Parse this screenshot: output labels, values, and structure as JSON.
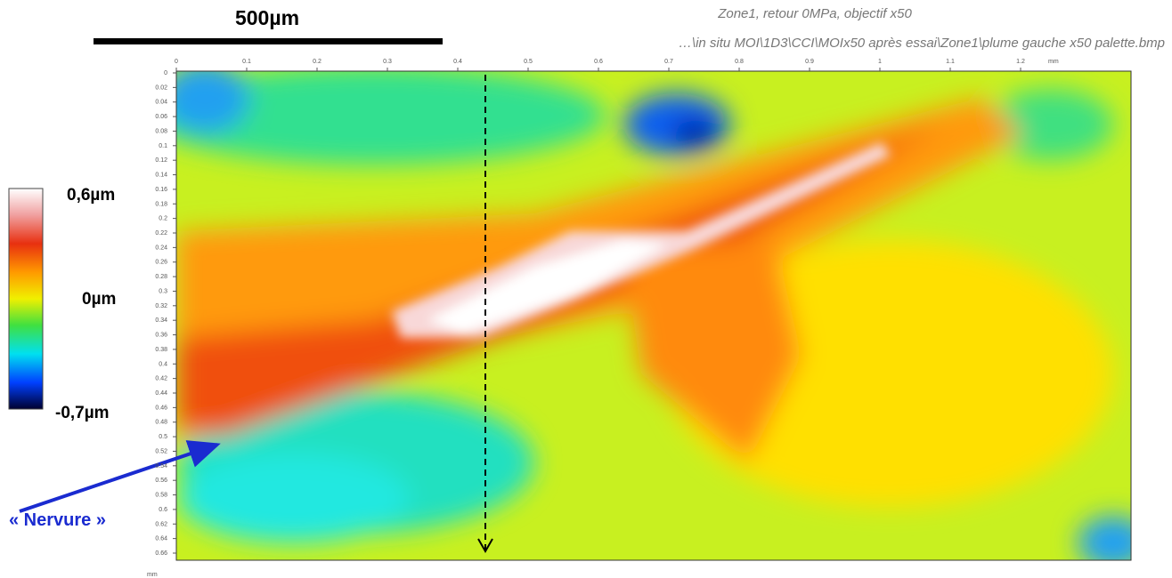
{
  "scale_bar": {
    "label": "500µm"
  },
  "caption": {
    "line1": "Zone1, retour 0MPa, objectif x50",
    "line2": "…\\in situ MOI\\1D3\\CCI\\MOIx50 après essai\\Zone1\\plume gauche x50 palette.bmp"
  },
  "x_axis": {
    "ticks": [
      "0",
      "0.1",
      "0.2",
      "0.3",
      "0.4",
      "0.5",
      "0.6",
      "0.7",
      "0.8",
      "0.9",
      "1",
      "1.1",
      "1.2"
    ],
    "unit": "mm"
  },
  "y_axis": {
    "ticks": [
      "0",
      "0.02",
      "0.04",
      "0.06",
      "0.08",
      "0.1",
      "0.12",
      "0.14",
      "0.16",
      "0.18",
      "0.2",
      "0.22",
      "0.24",
      "0.26",
      "0.28",
      "0.3",
      "0.32",
      "0.34",
      "0.36",
      "0.38",
      "0.4",
      "0.42",
      "0.44",
      "0.46",
      "0.48",
      "0.5",
      "0.52",
      "0.54",
      "0.56",
      "0.58",
      "0.6",
      "0.62",
      "0.64",
      "0.66"
    ],
    "unit": "mm"
  },
  "colorbar": {
    "labels": [
      "0,6µm",
      "0µm",
      "-0,7µm"
    ]
  },
  "annotation": "« Nervure »"
}
